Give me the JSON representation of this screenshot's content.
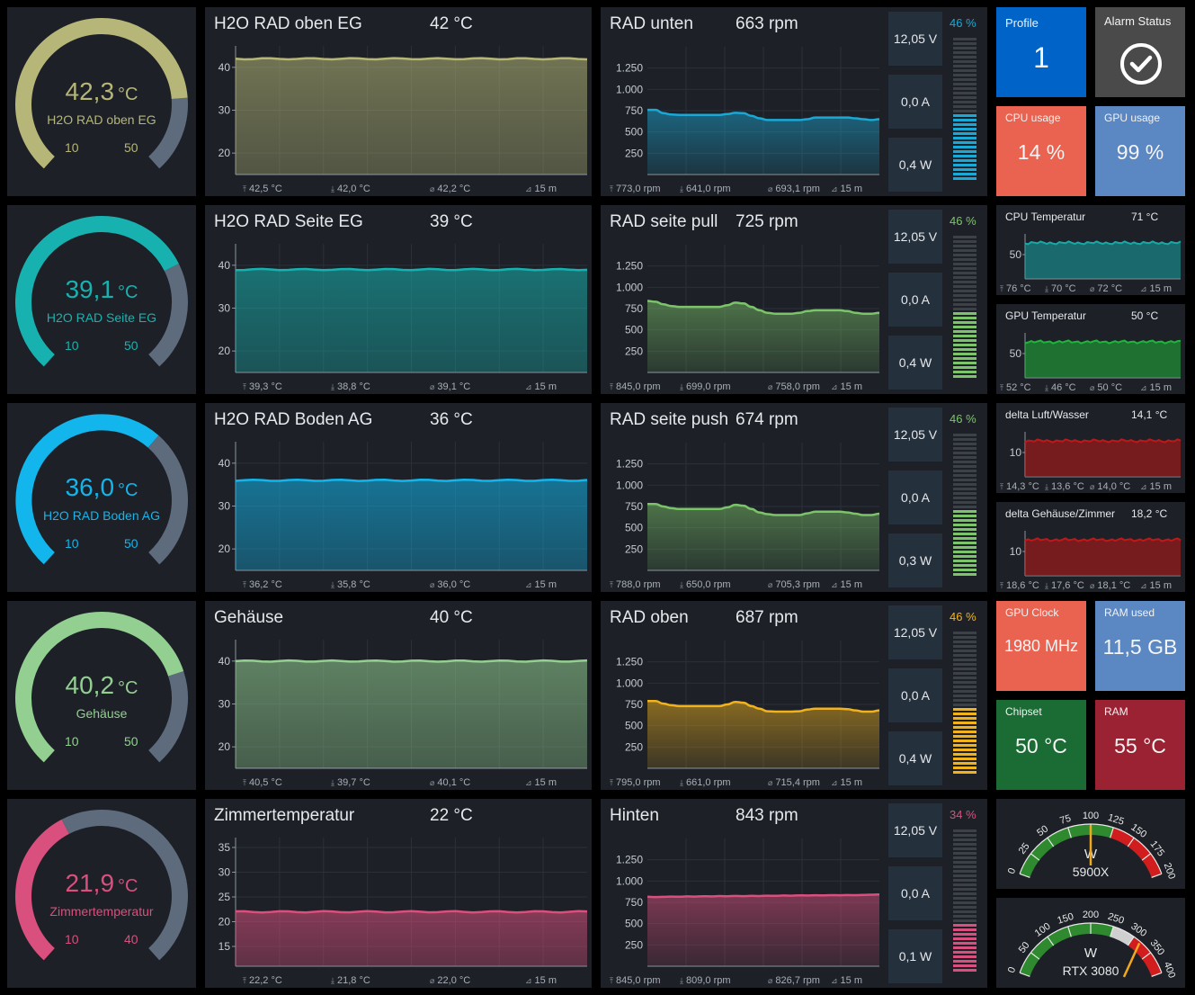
{
  "rows": [
    {
      "color": "#b5b677",
      "gauge": {
        "value": "42,3",
        "unit": "°C",
        "label": "H2O RAD oben EG",
        "min": "10",
        "max": "50",
        "fill_fraction": 0.81
      },
      "temp": {
        "title": "H2O RAD oben EG",
        "value": "42 °C",
        "ticks": [
          "40",
          "30",
          "20"
        ],
        "ymin": 15,
        "ymax": 45,
        "level": 42,
        "max": "42,5 °C",
        "min": "42,0 °C",
        "avg": "42,2 °C",
        "span": "15 m"
      },
      "fan": {
        "title": "RAD unten",
        "value": "663 rpm",
        "color": "#1aa8d6",
        "ticks": [
          "1.250",
          "1.000",
          "750",
          "500",
          "250"
        ],
        "series": [
          760,
          760,
          720,
          705,
          700,
          700,
          700,
          700,
          700,
          700,
          710,
          725,
          720,
          690,
          660,
          640,
          640,
          640,
          640,
          640,
          650,
          670,
          670,
          670,
          670,
          670,
          660,
          650,
          640,
          650
        ],
        "max": "773,0 rpm",
        "min": "641,0 rpm",
        "avg": "693,1 rpm",
        "span": "15 m",
        "voltage": "12,05 V",
        "current": "0,0 A",
        "power": "0,4 W",
        "pct": "46 %",
        "pct_color": "#1aa8d6",
        "bar_fraction": 0.46
      }
    },
    {
      "color": "#17b2b0",
      "gauge": {
        "value": "39,1",
        "unit": "°C",
        "label": "H2O RAD Seite EG",
        "min": "10",
        "max": "50",
        "fill_fraction": 0.73
      },
      "temp": {
        "title": "H2O RAD Seite EG",
        "value": "39 °C",
        "ticks": [
          "40",
          "30",
          "20"
        ],
        "ymin": 15,
        "ymax": 45,
        "level": 39,
        "max": "39,3 °C",
        "min": "38,8 °C",
        "avg": "39,1 °C",
        "span": "15 m"
      },
      "fan": {
        "title": "RAD seite pull",
        "value": "725 rpm",
        "color": "#7cc46a",
        "ticks": [
          "1.250",
          "1.000",
          "750",
          "500",
          "250"
        ],
        "series": [
          840,
          830,
          800,
          780,
          770,
          770,
          770,
          770,
          770,
          770,
          790,
          820,
          810,
          770,
          730,
          700,
          690,
          690,
          690,
          700,
          720,
          730,
          730,
          730,
          730,
          720,
          700,
          690,
          690,
          700
        ],
        "max": "845,0 rpm",
        "min": "699,0 rpm",
        "avg": "758,0 rpm",
        "span": "15 m",
        "voltage": "12,05 V",
        "current": "0,0 A",
        "power": "0,4 W",
        "pct": "46 %",
        "pct_color": "#7cc46a",
        "bar_fraction": 0.46
      }
    },
    {
      "color": "#12b5ec",
      "gauge": {
        "value": "36,0",
        "unit": "°C",
        "label": "H2O RAD Boden AG",
        "min": "10",
        "max": "50",
        "fill_fraction": 0.65
      },
      "temp": {
        "title": "H2O RAD Boden AG",
        "value": "36 °C",
        "ticks": [
          "40",
          "30",
          "20"
        ],
        "ymin": 15,
        "ymax": 45,
        "level": 36,
        "max": "36,2 °C",
        "min": "35,8 °C",
        "avg": "36,0 °C",
        "span": "15 m"
      },
      "fan": {
        "title": "RAD seite push",
        "value": "674 rpm",
        "color": "#7cc46a",
        "ticks": [
          "1.250",
          "1.000",
          "750",
          "500",
          "250"
        ],
        "series": [
          780,
          780,
          750,
          730,
          720,
          720,
          720,
          720,
          720,
          720,
          740,
          770,
          760,
          720,
          680,
          660,
          650,
          650,
          650,
          650,
          670,
          690,
          690,
          690,
          690,
          680,
          665,
          650,
          650,
          665
        ],
        "max": "788,0 rpm",
        "min": "650,0 rpm",
        "avg": "705,3 rpm",
        "span": "15 m",
        "voltage": "12,05 V",
        "current": "0,0 A",
        "power": "0,3 W",
        "pct": "46 %",
        "pct_color": "#7cc46a",
        "bar_fraction": 0.46
      }
    },
    {
      "color": "#94cf92",
      "gauge": {
        "value": "40,2",
        "unit": "°C",
        "label": "Gehäuse",
        "min": "10",
        "max": "50",
        "fill_fraction": 0.76
      },
      "temp": {
        "title": "Gehäuse",
        "value": "40 °C",
        "ticks": [
          "40",
          "30",
          "20"
        ],
        "ymin": 15,
        "ymax": 45,
        "level": 40,
        "max": "40,5 °C",
        "min": "39,7 °C",
        "avg": "40,1 °C",
        "span": "15 m"
      },
      "fan": {
        "title": "RAD oben",
        "value": "687 rpm",
        "color": "#f2b21c",
        "ticks": [
          "1.250",
          "1.000",
          "750",
          "500",
          "250"
        ],
        "series": [
          790,
          790,
          760,
          740,
          730,
          730,
          730,
          730,
          730,
          730,
          750,
          780,
          770,
          730,
          700,
          670,
          665,
          665,
          665,
          670,
          690,
          700,
          700,
          700,
          700,
          695,
          680,
          665,
          665,
          680
        ],
        "max": "795,0 rpm",
        "min": "661,0 rpm",
        "avg": "715,4 rpm",
        "span": "15 m",
        "voltage": "12,05 V",
        "current": "0,0 A",
        "power": "0,4 W",
        "pct": "46 %",
        "pct_color": "#f2b21c",
        "bar_fraction": 0.46
      }
    },
    {
      "color": "#d94f7d",
      "gauge": {
        "value": "21,9",
        "unit": "°C",
        "label": "Zimmertemperatur",
        "min": "10",
        "max": "40",
        "fill_fraction": 0.4
      },
      "temp": {
        "title": "Zimmertemperatur",
        "value": "22 °C",
        "ticks": [
          "35",
          "30",
          "25",
          "20",
          "15"
        ],
        "ymin": 11,
        "ymax": 37,
        "level": 22,
        "max": "22,2 °C",
        "min": "21,8 °C",
        "avg": "22,0 °C",
        "span": "15 m"
      },
      "fan": {
        "title": "Hinten",
        "value": "843 rpm",
        "color": "#d94f7d",
        "ticks": [
          "1.250",
          "1.000",
          "750",
          "500",
          "250"
        ],
        "series": [
          815,
          812,
          814,
          818,
          816,
          820,
          818,
          822,
          820,
          824,
          822,
          825,
          823,
          826,
          824,
          828,
          826,
          830,
          828,
          832,
          830,
          833,
          831,
          835,
          833,
          836,
          834,
          838,
          840,
          843
        ],
        "max": "845,0 rpm",
        "min": "809,0 rpm",
        "avg": "826,7 rpm",
        "span": "15 m",
        "voltage": "12,05 V",
        "current": "0,0 A",
        "power": "0,1 W",
        "pct": "34 %",
        "pct_color": "#d94f7d",
        "bar_fraction": 0.34
      }
    }
  ],
  "tiles": {
    "profile": {
      "label": "Profile",
      "value": "1",
      "color": "#0063c8"
    },
    "alarm": {
      "label": "Alarm Status",
      "color": "#4a4a4a"
    },
    "cpu_usage": {
      "label": "CPU usage",
      "value": "14 %",
      "color": "#ea6350"
    },
    "gpu_usage": {
      "label": "GPU usage",
      "value": "99 %",
      "color": "#5b87c2"
    },
    "gpu_clock": {
      "label": "GPU Clock",
      "value": "1980 MHz",
      "color": "#ea6350"
    },
    "ram_used": {
      "label": "RAM used",
      "value": "11,5 GB",
      "color": "#5b87c2"
    },
    "chipset": {
      "label": "Chipset",
      "value": "50 °C",
      "color": "#1a6b34"
    },
    "ram": {
      "label": "RAM",
      "value": "55 °C",
      "color": "#9b2232"
    }
  },
  "minis": [
    {
      "title": "CPU Temperatur",
      "value": "71 °C",
      "tick": "50",
      "color": "#17a8a8",
      "max": "76 °C",
      "min": "70 °C",
      "avg": "72 °C",
      "span": "15 m"
    },
    {
      "title": "GPU Temperatur",
      "value": "50 °C",
      "tick": "50",
      "color": "#1fb53a",
      "max": "52 °C",
      "min": "46 °C",
      "avg": "50 °C",
      "span": "15 m"
    },
    {
      "title": "delta Luft/Wasser",
      "value": "14,1 °C",
      "tick": "10",
      "color": "#c01818",
      "max": "14,3 °C",
      "min": "13,6 °C",
      "avg": "14,0 °C",
      "span": "15 m"
    },
    {
      "title": "delta Gehäuse/Zimmer",
      "value": "18,2 °C",
      "tick": "10",
      "color": "#c01818",
      "max": "18,6 °C",
      "min": "17,6 °C",
      "avg": "18,1 °C",
      "span": "15 m"
    }
  ],
  "watt_gauges": [
    {
      "label": "5900X",
      "unit": "W",
      "ticks": [
        "0",
        "25",
        "50",
        "75",
        "100",
        "125",
        "150",
        "175",
        "200"
      ],
      "max_value": 200,
      "needle_value": 100,
      "green_until": 125,
      "red_from": 125
    },
    {
      "label": "RTX 3080",
      "unit": "W",
      "ticks": [
        "0",
        "50",
        "100",
        "150",
        "200",
        "250",
        "300",
        "350",
        "400"
      ],
      "max_value": 400,
      "needle_value": 318,
      "green_until": 250,
      "red_from": 300
    }
  ]
}
